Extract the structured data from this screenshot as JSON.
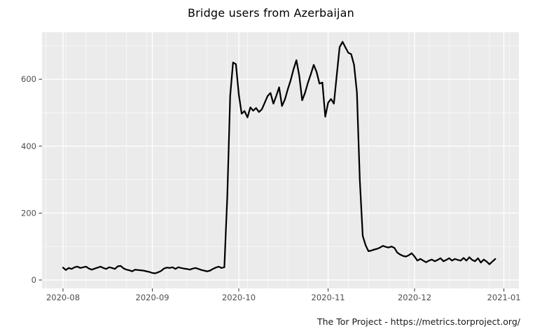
{
  "title": "Bridge users from Azerbaijan",
  "caption": "The Tor Project - https://metrics.torproject.org/",
  "chart_data": {
    "type": "line",
    "title": "Bridge users from Azerbaijan",
    "xlabel": "",
    "ylabel": "",
    "grid": "on",
    "legend": "none",
    "x_axis": {
      "start_date": "2020-08-01",
      "tick_labels": [
        "2020-08",
        "2020-09",
        "2020-10",
        "2020-11",
        "2020-12",
        "2021-01"
      ],
      "tick_day_offsets": [
        0,
        31,
        61,
        92,
        122,
        153
      ],
      "minor_gridlines": "weekly"
    },
    "y_axis": {
      "tick_labels": [
        "0",
        "200",
        "400",
        "600"
      ],
      "ticks": [
        0,
        200,
        400,
        600
      ],
      "minor_ticks": [
        100,
        300,
        500,
        700
      ],
      "range": [
        -25,
        747
      ]
    },
    "colors": {
      "panel_bg": "#EBEBEB",
      "grid_major": "#FFFFFF",
      "grid_minor": "#FFFFFF",
      "axis_text": "#4D4D4D",
      "tick_mark": "#333333",
      "line": "#000000"
    },
    "series": [
      {
        "name": "bridge-users-azerbaijan",
        "color": "#000000",
        "start_date": "2020-08-01",
        "frequency": "daily",
        "values": [
          37,
          30,
          36,
          33,
          38,
          40,
          36,
          38,
          40,
          34,
          31,
          34,
          37,
          40,
          36,
          33,
          38,
          36,
          33,
          41,
          42,
          35,
          31,
          29,
          26,
          31,
          30,
          29,
          28,
          26,
          24,
          21,
          20,
          23,
          27,
          34,
          37,
          36,
          38,
          33,
          38,
          36,
          34,
          33,
          31,
          34,
          36,
          33,
          30,
          28,
          26,
          28,
          33,
          37,
          40,
          36,
          38,
          250,
          550,
          650,
          645,
          555,
          497,
          505,
          486,
          516,
          506,
          514,
          502,
          510,
          530,
          550,
          559,
          527,
          550,
          576,
          520,
          540,
          570,
          597,
          630,
          657,
          610,
          537,
          560,
          590,
          615,
          643,
          622,
          587,
          590,
          488,
          530,
          541,
          527,
          612,
          696,
          712,
          695,
          679,
          675,
          643,
          560,
          300,
          132,
          104,
          86,
          88,
          91,
          93,
          97,
          102,
          99,
          97,
          100,
          96,
          82,
          76,
          72,
          70,
          74,
          80,
          70,
          58,
          63,
          58,
          53,
          58,
          61,
          56,
          60,
          65,
          56,
          60,
          65,
          58,
          63,
          60,
          58,
          66,
          58,
          68,
          60,
          56,
          65,
          52,
          61,
          55,
          47,
          55,
          63
        ]
      }
    ]
  }
}
